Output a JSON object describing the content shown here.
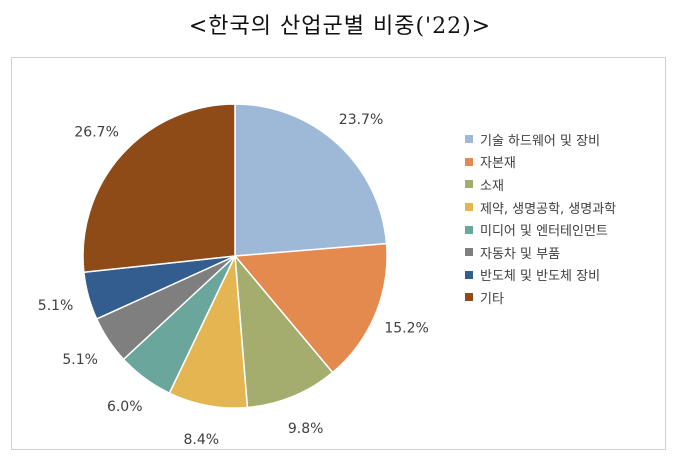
{
  "title": "<한국의 산업군별 비중('22)>",
  "chart_data": {
    "type": "pie",
    "title": "<한국의 산업군별 비중('22)>",
    "legend_position": "right",
    "slices": [
      {
        "label": "기술 하드웨어 및 장비",
        "value": 23.7,
        "value_label": "23.7%",
        "color": "#9EB9D8"
      },
      {
        "label": "자본재",
        "value": 15.2,
        "value_label": "15.2%",
        "color": "#E58A4E"
      },
      {
        "label": "소재",
        "value": 9.8,
        "value_label": "9.8%",
        "color": "#A4AC6E"
      },
      {
        "label": "제약, 생명공학, 생명과학",
        "value": 8.4,
        "value_label": "8.4%",
        "color": "#E4B652"
      },
      {
        "label": "미디어 및 엔터테인먼트",
        "value": 6.0,
        "value_label": "6.0%",
        "color": "#6AA69C"
      },
      {
        "label": "자동차 및 부품",
        "value": 5.1,
        "value_label": "5.1%",
        "color": "#7F7F7F"
      },
      {
        "label": "반도체 및 반도체 장비",
        "value": 5.1,
        "value_label": "5.1%",
        "color": "#345D8F"
      },
      {
        "label": "기타",
        "value": 26.7,
        "value_label": "26.7%",
        "color": "#8E4A17"
      }
    ]
  }
}
